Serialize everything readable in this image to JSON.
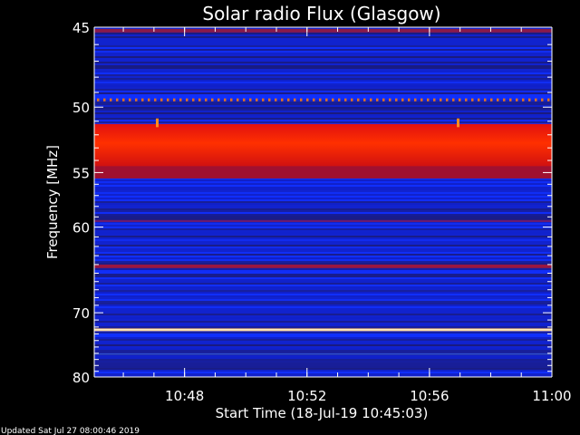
{
  "chart_data": {
    "type": "heatmap",
    "title": "Solar radio Flux (Glasgow)",
    "xlabel": "Start Time (18-Jul-19 10:45:03)",
    "ylabel": "Frequency [MHz]",
    "x_range": [
      "10:45:03",
      "11:00:00"
    ],
    "y_range": [
      45,
      80
    ],
    "x_ticks": [
      "10:48",
      "10:52",
      "10:56",
      "11:00"
    ],
    "x_tick_minutes": [
      2.95,
      6.95,
      10.95,
      14.95
    ],
    "y_ticks": [
      45,
      50,
      55,
      60,
      70,
      80
    ],
    "y_scale": "reciprocal (inverted, increasing downward)",
    "background_colormap": [
      "#1a1a7a",
      "#1020c8",
      "#1030ff"
    ],
    "bands": [
      {
        "freq_start": 45.1,
        "freq_end": 45.3,
        "level": "medium",
        "color": "#8a1a4a"
      },
      {
        "freq_start": 49.4,
        "freq_end": 49.6,
        "level": "medium-high",
        "color": "#e07020",
        "pattern": "dotted"
      },
      {
        "freq_start": 51.2,
        "freq_end": 54.5,
        "level": "high",
        "color": "#ff2000"
      },
      {
        "freq_start": 54.5,
        "freq_end": 55.5,
        "level": "medium",
        "color": "#a01030"
      },
      {
        "freq_start": 59.3,
        "freq_end": 59.5,
        "level": "low-medium",
        "color": "#6a1a70"
      },
      {
        "freq_start": 64.0,
        "freq_end": 64.4,
        "level": "medium",
        "color": "#9a1640"
      },
      {
        "freq_start": 72.2,
        "freq_end": 72.6,
        "level": "max",
        "color": "#fff8d0"
      },
      {
        "freq_start": 76.0,
        "freq_end": 76.1,
        "level": "low",
        "color": "#3050d0"
      }
    ]
  },
  "footer": {
    "updated": "Updated Sat Jul 27 08:00:46 2019"
  }
}
